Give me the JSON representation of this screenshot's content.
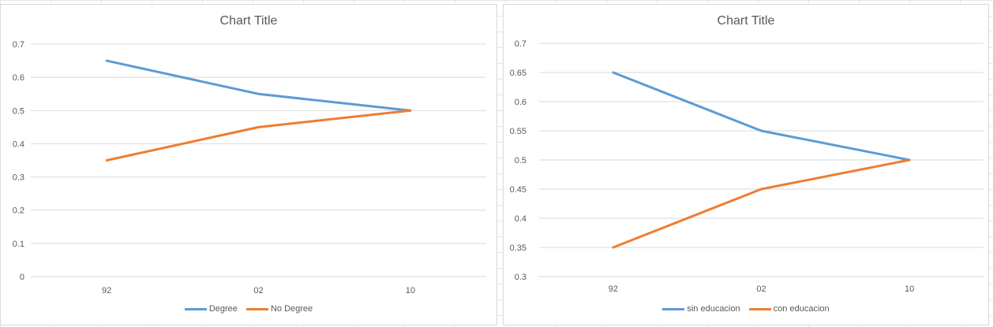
{
  "chart_data": [
    {
      "type": "line",
      "title": "Chart Title",
      "xlabel": "",
      "ylabel": "",
      "categories": [
        "92",
        "02",
        "10"
      ],
      "series": [
        {
          "name": "Degree",
          "values": [
            0.65,
            0.55,
            0.5
          ],
          "color": "#5b9bd5"
        },
        {
          "name": "No Degree",
          "values": [
            0.35,
            0.45,
            0.5
          ],
          "color": "#ed7d31"
        }
      ],
      "ylim": [
        0,
        0.7
      ],
      "yticks": [
        "0",
        "0.1",
        "0.2",
        "0.3",
        "0.4",
        "0.5",
        "0.6",
        "0.7"
      ],
      "grid": true,
      "legend": "bottom"
    },
    {
      "type": "line",
      "title": "Chart Title",
      "xlabel": "",
      "ylabel": "",
      "categories": [
        "92",
        "02",
        "10"
      ],
      "series": [
        {
          "name": "sin educacion",
          "values": [
            0.65,
            0.55,
            0.5
          ],
          "color": "#5b9bd5"
        },
        {
          "name": "con educacion",
          "values": [
            0.35,
            0.45,
            0.5
          ],
          "color": "#ed7d31"
        }
      ],
      "ylim": [
        0.3,
        0.7
      ],
      "yticks": [
        "0.3",
        "0.35",
        "0.4",
        "0.45",
        "0.5",
        "0.55",
        "0.6",
        "0.65",
        "0.7"
      ],
      "grid": true,
      "legend": "bottom"
    }
  ]
}
